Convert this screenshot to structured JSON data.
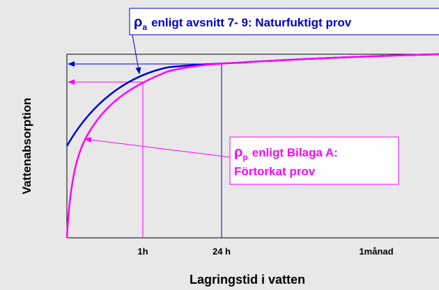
{
  "y_axis": {
    "title": "Vattenabsorption"
  },
  "x_axis": {
    "title": "Lagringstid i vatten",
    "ticks": [
      "1h",
      "24 h",
      "1månad"
    ]
  },
  "annotations": [
    {
      "symbol": "ρ",
      "subscript": "a",
      "text": "enligt avsnitt 7- 9: Naturfuktigt prov"
    },
    {
      "symbol": "ρ",
      "subscript": "p",
      "lines": [
        "enligt Bilaga A:",
        "Förtorkat prov"
      ]
    }
  ]
}
